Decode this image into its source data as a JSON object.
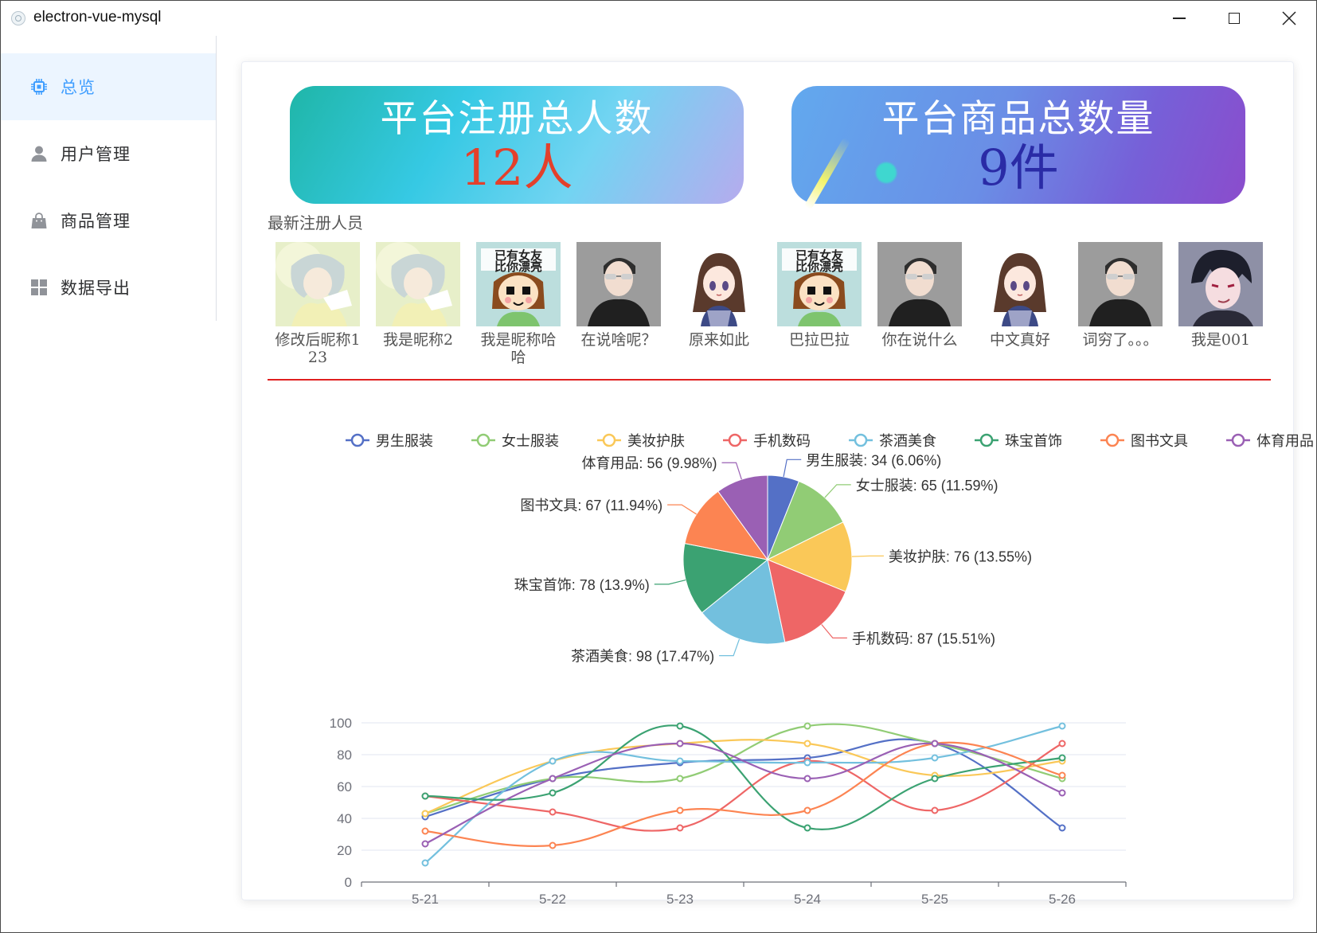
{
  "window": {
    "title": "electron-vue-mysql"
  },
  "sidebar": {
    "items": [
      {
        "label": "总览",
        "icon": "cpu-icon",
        "active": true
      },
      {
        "label": "用户管理",
        "icon": "user-icon",
        "active": false
      },
      {
        "label": "商品管理",
        "icon": "shopping-bag-icon",
        "active": false
      },
      {
        "label": "数据导出",
        "icon": "grid-icon",
        "active": false
      }
    ]
  },
  "stats": {
    "users": {
      "title": "平台注册总人数",
      "value": "12人"
    },
    "goods": {
      "title": "平台商品总数量",
      "value": "9件"
    }
  },
  "newest": {
    "label": "最新注册人员",
    "users": [
      {
        "name": "修改后昵称123",
        "avatar": "anime-boy-avatar"
      },
      {
        "name": "我是昵称2",
        "avatar": "anime-boy-avatar"
      },
      {
        "name": "我是昵称哈哈",
        "avatar": "meme-girl-avatar"
      },
      {
        "name": "在说啥呢？",
        "avatar": "sunglasses-man-avatar"
      },
      {
        "name": "原来如此",
        "avatar": "anime-girl-avatar"
      },
      {
        "name": "巴拉巴拉",
        "avatar": "meme-girl-avatar"
      },
      {
        "name": "你在说什么",
        "avatar": "sunglasses-man-avatar"
      },
      {
        "name": "中文真好",
        "avatar": "anime-girl-avatar"
      },
      {
        "name": "词穷了。。。",
        "avatar": "sunglasses-man-avatar"
      },
      {
        "name": "我是001",
        "avatar": "dark-hair-boy-avatar"
      }
    ]
  },
  "chart_data": [
    {
      "type": "pie",
      "legend": [
        "男生服装",
        "女士服装",
        "美妆护肤",
        "手机数码",
        "茶酒美食",
        "珠宝首饰",
        "图书文具",
        "体育用品"
      ],
      "legend_position": "top",
      "slices": [
        {
          "name": "男生服装",
          "value": 34,
          "percent": "6.06%",
          "label": "男生服装: 34 (6.06%)"
        },
        {
          "name": "女士服装",
          "value": 65,
          "percent": "11.59%",
          "label": "女士服装: 65 (11.59%)"
        },
        {
          "name": "美妆护肤",
          "value": 76,
          "percent": "13.55%",
          "label": "美妆护肤: 76 (13.55%)"
        },
        {
          "name": "手机数码",
          "value": 87,
          "percent": "15.51%",
          "label": "手机数码: 87 (15.51%)"
        },
        {
          "name": "茶酒美食",
          "value": 98,
          "percent": "17.47%",
          "label": "茶酒美食: 98 (17.47%)"
        },
        {
          "name": "珠宝首饰",
          "value": 78,
          "percent": "13.9%",
          "label": "珠宝首饰: 78 (13.9%)"
        },
        {
          "name": "图书文具",
          "value": 67,
          "percent": "11.94%",
          "label": "图书文具: 67 (11.94%)"
        },
        {
          "name": "体育用品",
          "value": 56,
          "percent": "9.98%",
          "label": "体育用品: 56 (9.98%)"
        }
      ],
      "colors": [
        "#5470c6",
        "#91cc75",
        "#fac858",
        "#ee6666",
        "#73c0de",
        "#3ba272",
        "#fc8452",
        "#9a60b4"
      ]
    },
    {
      "type": "line",
      "smooth": true,
      "categories": [
        "5-21",
        "5-22",
        "5-23",
        "5-24",
        "5-25",
        "5-26"
      ],
      "ylim": [
        0,
        100
      ],
      "yticks": [
        0,
        20,
        40,
        60,
        80,
        100
      ],
      "grid": true,
      "series": [
        {
          "name": "男生服装",
          "values": [
            41,
            65,
            75,
            78,
            87,
            34
          ]
        },
        {
          "name": "女士服装",
          "values": [
            43,
            65,
            65,
            98,
            87,
            65
          ]
        },
        {
          "name": "美妆护肤",
          "values": [
            43,
            76,
            87,
            87,
            67,
            76
          ]
        },
        {
          "name": "手机数码",
          "values": [
            54,
            44,
            34,
            76,
            45,
            87
          ]
        },
        {
          "name": "茶酒美食",
          "values": [
            12,
            76,
            76,
            75,
            78,
            98
          ]
        },
        {
          "name": "珠宝首饰",
          "values": [
            54,
            56,
            98,
            34,
            65,
            78
          ]
        },
        {
          "name": "图书文具",
          "values": [
            32,
            23,
            45,
            45,
            87,
            67
          ]
        },
        {
          "name": "体育用品",
          "values": [
            24,
            65,
            87,
            65,
            87,
            56
          ]
        }
      ]
    }
  ]
}
